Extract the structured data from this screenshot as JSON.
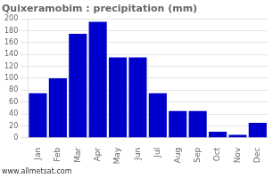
{
  "chart_data": {
    "type": "bar",
    "title": "Quixeramobim : precipitation (mm)",
    "categories": [
      "Jan",
      "Feb",
      "Mar",
      "Apr",
      "May",
      "Jun",
      "Jul",
      "Aug",
      "Sep",
      "Oct",
      "Nov",
      "Dec"
    ],
    "values": [
      75,
      100,
      175,
      195,
      135,
      135,
      75,
      45,
      45,
      10,
      5,
      25
    ],
    "color": "#0000cc",
    "ylim": [
      0,
      200
    ],
    "yticks": [
      0,
      20,
      40,
      60,
      80,
      100,
      120,
      140,
      160,
      180,
      200
    ],
    "grid": true,
    "annotation": "www.allmetsat.com"
  }
}
